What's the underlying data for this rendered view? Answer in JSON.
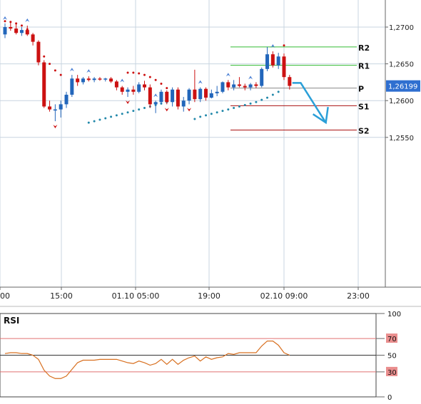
{
  "chart_data": [
    {
      "type": "candlestick",
      "title": "",
      "price_axis": {
        "ticks": [
          "1,2700",
          "1,2650",
          "1,2600",
          "1,2550"
        ],
        "tick_values": [
          1.27,
          1.265,
          1.26,
          1.255
        ],
        "current_price_label": "1,26199",
        "current_price": 1.26199,
        "current_price_label_color": "#2f6fd0"
      },
      "time_axis": {
        "labels": [
          "00",
          "15:00",
          "01.10 05:00",
          "19:00",
          "02.10 09:00",
          "23:00"
        ]
      },
      "colors": {
        "up": "#2266bb",
        "down": "#cc1111",
        "background": "#ffffff",
        "grid": "#c8d4e0"
      },
      "candles": [
        [
          1.269,
          1.2705,
          1.2685,
          1.27
        ],
        [
          1.27,
          1.2708,
          1.2695,
          1.2698
        ],
        [
          1.2698,
          1.2705,
          1.269,
          1.2692
        ],
        [
          1.2692,
          1.27,
          1.2688,
          1.2696
        ],
        [
          1.2696,
          1.2702,
          1.2688,
          1.269
        ],
        [
          1.269,
          1.2692,
          1.2675,
          1.268
        ],
        [
          1.268,
          1.2682,
          1.2648,
          1.2652
        ],
        [
          1.2652,
          1.2655,
          1.259,
          1.2592
        ],
        [
          1.2592,
          1.26,
          1.2585,
          1.2588
        ],
        [
          1.2588,
          1.2595,
          1.2572,
          1.2588
        ],
        [
          1.2588,
          1.26,
          1.2577,
          1.2595
        ],
        [
          1.2595,
          1.2612,
          1.259,
          1.2608
        ],
        [
          1.2608,
          1.2635,
          1.2605,
          1.263
        ],
        [
          1.263,
          1.2635,
          1.262,
          1.2625
        ],
        [
          1.2625,
          1.2632,
          1.2622,
          1.263
        ],
        [
          1.263,
          1.2633,
          1.2626,
          1.2628
        ],
        [
          1.2628,
          1.2632,
          1.2625,
          1.263
        ],
        [
          1.263,
          1.2632,
          1.2627,
          1.2629
        ],
        [
          1.2629,
          1.2631,
          1.2626,
          1.263
        ],
        [
          1.263,
          1.2632,
          1.2624,
          1.2626
        ],
        [
          1.2626,
          1.2628,
          1.2614,
          1.2618
        ],
        [
          1.2618,
          1.262,
          1.2608,
          1.2612
        ],
        [
          1.2612,
          1.2618,
          1.2605,
          1.2615
        ],
        [
          1.2615,
          1.262,
          1.2608,
          1.2612
        ],
        [
          1.2612,
          1.2625,
          1.261,
          1.2622
        ],
        [
          1.2622,
          1.2627,
          1.2614,
          1.2618
        ],
        [
          1.2618,
          1.2622,
          1.259,
          1.2595
        ],
        [
          1.2595,
          1.26,
          1.2583,
          1.2598
        ],
        [
          1.2598,
          1.2615,
          1.2595,
          1.2612
        ],
        [
          1.2612,
          1.2614,
          1.2595,
          1.2598
        ],
        [
          1.2598,
          1.2618,
          1.2592,
          1.2615
        ],
        [
          1.2615,
          1.2618,
          1.2588,
          1.2592
        ],
        [
          1.2592,
          1.2605,
          1.2585,
          1.26
        ],
        [
          1.26,
          1.2617,
          1.2595,
          1.2615
        ],
        [
          1.2615,
          1.2642,
          1.2598,
          1.2602
        ],
        [
          1.2602,
          1.2618,
          1.2598,
          1.2616
        ],
        [
          1.2616,
          1.2618,
          1.26,
          1.2604
        ],
        [
          1.2604,
          1.2615,
          1.2603,
          1.261
        ],
        [
          1.261,
          1.262,
          1.2606,
          1.2612
        ],
        [
          1.2612,
          1.2626,
          1.261,
          1.2625
        ],
        [
          1.2625,
          1.2628,
          1.2614,
          1.2618
        ],
        [
          1.2618,
          1.2628,
          1.2614,
          1.2622
        ],
        [
          1.2622,
          1.2632,
          1.2618,
          1.262
        ],
        [
          1.262,
          1.2623,
          1.2614,
          1.2618
        ],
        [
          1.2618,
          1.2624,
          1.2614,
          1.2622
        ],
        [
          1.2622,
          1.2625,
          1.2617,
          1.262
        ],
        [
          1.262,
          1.2645,
          1.2618,
          1.2643
        ],
        [
          1.2643,
          1.2673,
          1.264,
          1.2663
        ],
        [
          1.2663,
          1.2667,
          1.2645,
          1.2648
        ],
        [
          1.2648,
          1.2665,
          1.2643,
          1.266
        ],
        [
          1.266,
          1.2664,
          1.2628,
          1.2632
        ],
        [
          1.2632,
          1.2635,
          1.2615,
          1.262
        ]
      ],
      "fractals": {
        "up_marker_color": "#4a7fd4",
        "down_marker_color": "#cc1111",
        "up_candle_index": [
          0,
          4,
          12,
          15,
          21,
          27,
          35,
          40,
          44,
          48
        ],
        "down_candle_index": [
          9,
          22,
          29,
          33
        ]
      },
      "parabolic_sar": {
        "color_above": "#cc1111",
        "color_below": "#2288aa",
        "above": [
          [
            1.2708,
            0
          ],
          [
            1.2707,
            1
          ],
          [
            1.2705,
            2
          ],
          [
            1.2702,
            3
          ],
          [
            1.2697,
            4
          ],
          [
            1.2688,
            5
          ],
          [
            1.2675,
            6
          ],
          [
            1.266,
            7
          ],
          [
            1.265,
            8
          ],
          [
            1.2641,
            9
          ],
          [
            1.2635,
            10
          ],
          [
            1.2638,
            22
          ],
          [
            1.2638,
            23
          ],
          [
            1.2637,
            24
          ],
          [
            1.2635,
            25
          ],
          [
            1.2632,
            26
          ],
          [
            1.2628,
            27
          ],
          [
            1.2623,
            28
          ],
          [
            1.2617,
            29
          ],
          [
            1.2675,
            50
          ]
        ],
        "below": [
          [
            1.257,
            15
          ],
          [
            1.2572,
            16
          ],
          [
            1.2574,
            17
          ],
          [
            1.2576,
            18
          ],
          [
            1.2578,
            19
          ],
          [
            1.258,
            20
          ],
          [
            1.2582,
            21
          ],
          [
            1.2584,
            22
          ],
          [
            1.2586,
            23
          ],
          [
            1.2588,
            24
          ],
          [
            1.259,
            25
          ],
          [
            1.2592,
            26
          ],
          [
            1.2594,
            27
          ],
          [
            1.2596,
            28
          ],
          [
            1.2598,
            29
          ],
          [
            1.26,
            30
          ],
          [
            1.2575,
            34
          ],
          [
            1.2578,
            35
          ],
          [
            1.258,
            36
          ],
          [
            1.2582,
            37
          ],
          [
            1.2584,
            38
          ],
          [
            1.2586,
            39
          ],
          [
            1.2588,
            40
          ],
          [
            1.259,
            41
          ],
          [
            1.2592,
            42
          ],
          [
            1.2594,
            43
          ],
          [
            1.2596,
            44
          ],
          [
            1.2598,
            45
          ],
          [
            1.2601,
            46
          ],
          [
            1.2604,
            47
          ],
          [
            1.2608,
            48
          ],
          [
            1.2612,
            49
          ]
        ]
      },
      "pivot_levels": [
        {
          "label": "R2",
          "value": 1.2673,
          "color": "#33bb33"
        },
        {
          "label": "R1",
          "value": 1.2648,
          "color": "#33bb33"
        },
        {
          "label": "P",
          "value": 1.2617,
          "color": "#888888"
        },
        {
          "label": "S1",
          "value": 1.2593,
          "color": "#aa1111"
        },
        {
          "label": "S2",
          "value": 1.256,
          "color": "#aa1111"
        }
      ],
      "forecast_arrow": {
        "color": "#2a9fd8",
        "points": [
          [
            1.2624,
            51.5
          ],
          [
            1.2624,
            53
          ],
          [
            1.257,
            57.5
          ]
        ]
      }
    },
    {
      "type": "line",
      "title": "RSI",
      "ylim": [
        0,
        100
      ],
      "y_ticks": [
        "100",
        "70",
        "50",
        "30",
        "0"
      ],
      "levels": [
        {
          "label": "70",
          "value": 70,
          "color": "#e07070"
        },
        {
          "label": "30",
          "value": 30,
          "color": "#e07070"
        },
        {
          "label": "50",
          "value": 50,
          "color": "#333333"
        }
      ],
      "line_color": "#d87020",
      "values": [
        52,
        53,
        53,
        52,
        52,
        50,
        45,
        32,
        25,
        22,
        22,
        25,
        33,
        41,
        44,
        44,
        44,
        45,
        45,
        45,
        45,
        43,
        41,
        40,
        43,
        41,
        38,
        40,
        45,
        39,
        45,
        39,
        44,
        47,
        49,
        43,
        48,
        45,
        47,
        48,
        52,
        51,
        53,
        53,
        53,
        53,
        61,
        67,
        67,
        62,
        53,
        50
      ]
    }
  ]
}
